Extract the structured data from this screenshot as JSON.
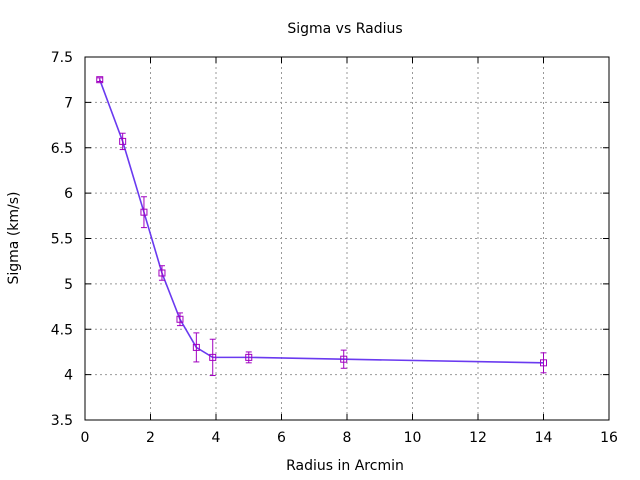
{
  "chart_data": {
    "type": "line",
    "title": "Sigma vs Radius",
    "xlabel": "Radius in Arcmin",
    "ylabel": "Sigma (km/s)",
    "xlim": [
      0,
      16
    ],
    "ylim": [
      3.5,
      7.5
    ],
    "xticks": [
      0,
      2,
      4,
      6,
      8,
      10,
      12,
      14,
      16
    ],
    "yticks": [
      3.5,
      4,
      4.5,
      5,
      5.5,
      6,
      6.5,
      7,
      7.5
    ],
    "xtick_labels": [
      "0",
      "2",
      "4",
      "6",
      "8",
      "10",
      "12",
      "14",
      "16"
    ],
    "ytick_labels": [
      "3.5",
      "4",
      "4.5",
      "5",
      "5.5",
      "6",
      "6.5",
      "7",
      "7.5"
    ],
    "grid": true,
    "colors": {
      "line": "#6a3af0",
      "points": "#a000c0",
      "grid": "#999999",
      "axis": "#000000"
    },
    "series": [
      {
        "x": [
          0.45,
          1.15,
          1.8,
          2.35,
          2.9,
          3.4,
          3.9,
          5.0,
          7.9,
          14.0
        ],
        "y": [
          7.25,
          6.57,
          5.79,
          5.12,
          4.61,
          4.3,
          4.19,
          4.19,
          4.17,
          4.13
        ],
        "err": [
          0.02,
          0.09,
          0.17,
          0.08,
          0.07,
          0.16,
          0.2,
          0.06,
          0.1,
          0.11
        ]
      }
    ],
    "fit_line": {
      "x": [
        0.45,
        1.15,
        1.8,
        2.35,
        2.9,
        3.4,
        3.9,
        5.0,
        7.9,
        14.0
      ],
      "y": [
        7.25,
        6.57,
        5.79,
        5.12,
        4.61,
        4.3,
        4.19,
        4.19,
        4.17,
        4.13
      ]
    }
  }
}
